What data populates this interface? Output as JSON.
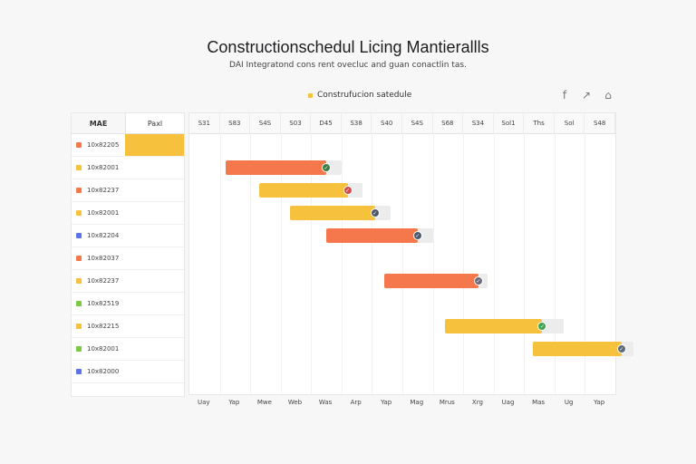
{
  "header": {
    "title": "Constructionschedul Licing Mantierallls",
    "subtitle": "DAI Integratond cons rent ovecluc and guan conactlin tas."
  },
  "legend": {
    "label": "Construfucion satedule",
    "color": "#f6c23e"
  },
  "toolbar": [
    {
      "name": "facebook-icon",
      "glyph": "f"
    },
    {
      "name": "share-icon",
      "glyph": "↗"
    },
    {
      "name": "home-icon",
      "glyph": "⌂"
    }
  ],
  "table": {
    "col1": "MAE",
    "col2": "Paxl",
    "rows": [
      {
        "id": "10x82205",
        "color": "#f4784b",
        "highlight": true
      },
      {
        "id": "10x82001",
        "color": "#f6c23e"
      },
      {
        "id": "10x82237",
        "color": "#f4784b"
      },
      {
        "id": "10x82001",
        "color": "#f6c23e"
      },
      {
        "id": "10x82204",
        "color": "#5b73e8"
      },
      {
        "id": "10x82037",
        "color": "#f4784b"
      },
      {
        "id": "10x82237",
        "color": "#f6c23e"
      },
      {
        "id": "10x82519",
        "color": "#7ac943"
      },
      {
        "id": "10x82215",
        "color": "#f6c23e"
      },
      {
        "id": "10x82001",
        "color": "#7ac943"
      },
      {
        "id": "10x82000",
        "color": "#5b73e8"
      }
    ]
  },
  "timeline": {
    "columns": [
      "S31",
      "S83",
      "S4S",
      "S03",
      "D45",
      "S38",
      "S40",
      "S4S",
      "S68",
      "S34",
      "Sol1",
      "Ths",
      "Sol",
      "S48"
    ],
    "axis": [
      "Uay",
      "Yap",
      "Mwe",
      "Web",
      "Was",
      "Arp",
      "Yap",
      "Mag",
      "Mrus",
      "Xrg",
      "Uag",
      "Mas",
      "Ug",
      "Yap"
    ]
  },
  "chart_data": {
    "type": "gantt",
    "title": "Constructionschedul Licing Mantierallls",
    "tasks": [
      {
        "row": 1,
        "start": 1.2,
        "end": 4.5,
        "track_end": 5.0,
        "color": "#f4784b",
        "end_color": "#3a7d44"
      },
      {
        "row": 2,
        "start": 2.3,
        "end": 5.2,
        "track_end": 5.7,
        "color": "#f6c23e",
        "end_color": "#d84a4a"
      },
      {
        "row": 3,
        "start": 3.3,
        "end": 6.1,
        "track_end": 6.6,
        "color": "#f6c23e",
        "end_color": "#4a5a6a"
      },
      {
        "row": 4,
        "start": 4.5,
        "end": 7.5,
        "track_end": 8.0,
        "color": "#f4784b",
        "end_color": "#4a5a6a"
      },
      {
        "row": 6,
        "start": 6.4,
        "end": 9.5,
        "track_end": 9.8,
        "color": "#f4784b",
        "end_color": "#6b6b7b"
      },
      {
        "row": 8,
        "start": 8.4,
        "end": 11.6,
        "track_end": 12.3,
        "color": "#f6c23e",
        "end_color": "#3fa34d"
      },
      {
        "row": 9,
        "start": 11.3,
        "end": 14.2,
        "track_end": 14.6,
        "color": "#f6c23e",
        "end_color": "#5a6a7a"
      }
    ]
  }
}
